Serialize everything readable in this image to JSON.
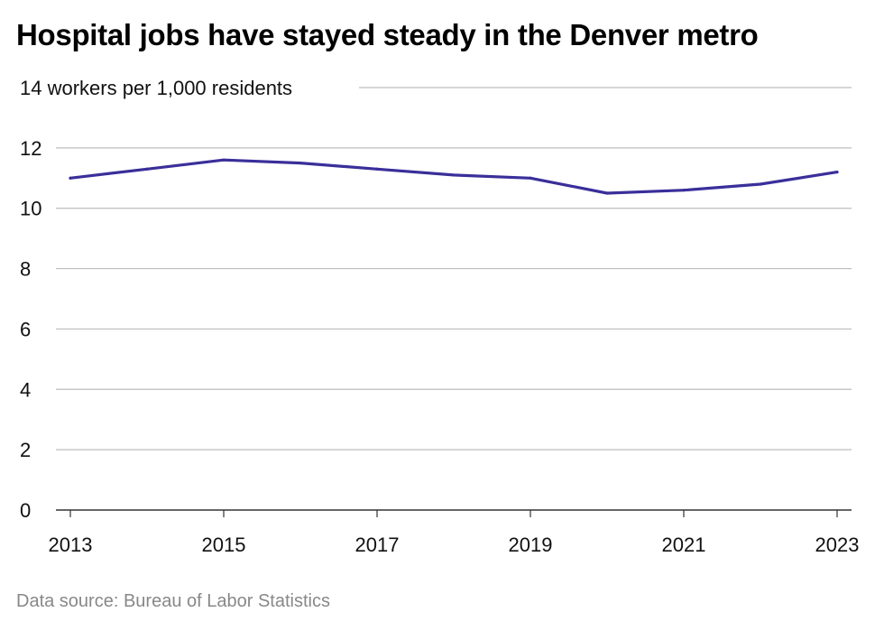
{
  "title": "Hospital jobs have stayed steady in the Denver metro",
  "source": "Data source: Bureau of Labor Statistics",
  "colors": {
    "line": "#3a2f9a",
    "grid": "#bdbdbd",
    "baseline": "#333333"
  },
  "chart_data": {
    "type": "line",
    "title": "Hospital jobs have stayed steady in the Denver metro",
    "ylabel": "workers per 1,000 residents",
    "xlabel": "",
    "x": [
      2013,
      2014,
      2015,
      2016,
      2017,
      2018,
      2019,
      2020,
      2021,
      2022,
      2023
    ],
    "series": [
      {
        "values": [
          11.0,
          11.3,
          11.6,
          11.5,
          11.3,
          11.1,
          11.0,
          10.5,
          10.6,
          10.8,
          11.2
        ]
      }
    ],
    "xticks": [
      "2013",
      "2015",
      "2017",
      "2019",
      "2021",
      "2023"
    ],
    "yticks": [
      "0",
      "2",
      "4",
      "6",
      "8",
      "10",
      "12",
      "14"
    ],
    "top_tick_suffix": " workers per 1,000 residents",
    "ylim": [
      0,
      14
    ],
    "xlim": [
      2013,
      2023
    ],
    "grid": true
  }
}
